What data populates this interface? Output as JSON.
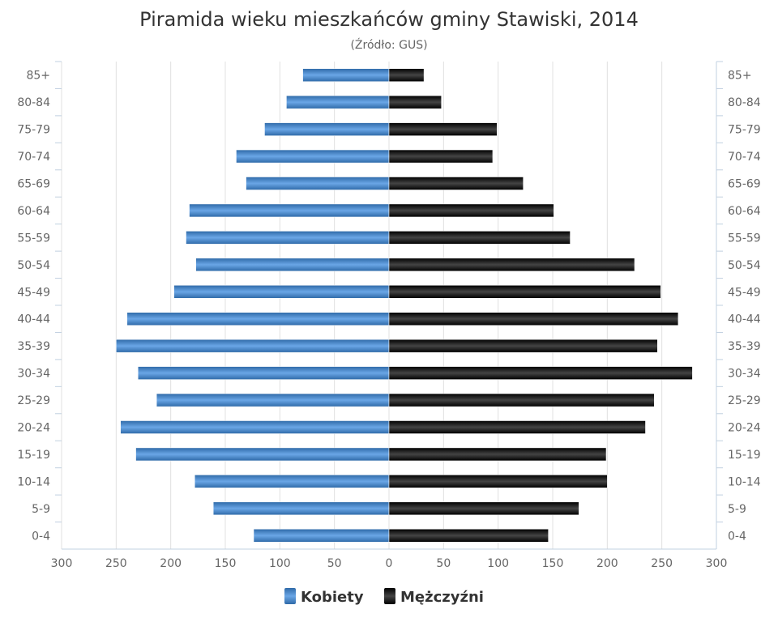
{
  "chart_data": {
    "type": "bar",
    "orientation": "horizontal-population-pyramid",
    "title": "Piramida wieku mieszkańców gminy Stawiski, 2014",
    "subtitle": "(Źródło: GUS)",
    "categories": [
      "85+",
      "80-84",
      "75-79",
      "70-74",
      "65-69",
      "60-64",
      "55-59",
      "50-54",
      "45-49",
      "40-44",
      "35-39",
      "30-34",
      "25-29",
      "20-24",
      "15-19",
      "10-14",
      "5-9",
      "0-4"
    ],
    "series": [
      {
        "name": "Kobiety",
        "side": "left",
        "color": "#4a86c8",
        "values": [
          79,
          94,
          114,
          140,
          131,
          183,
          186,
          177,
          197,
          240,
          250,
          230,
          213,
          246,
          232,
          178,
          161,
          124
        ]
      },
      {
        "name": "Mężczyźni",
        "side": "right",
        "color": "#1a1a1a",
        "values": [
          32,
          48,
          99,
          95,
          123,
          151,
          166,
          225,
          249,
          265,
          246,
          278,
          243,
          235,
          199,
          200,
          174,
          146
        ]
      }
    ],
    "xlim": [
      -300,
      300
    ],
    "x_ticks": [
      300,
      250,
      200,
      150,
      100,
      50,
      0,
      50,
      100,
      150,
      200,
      250,
      300
    ],
    "grid": true,
    "legend": "bottom-center"
  }
}
